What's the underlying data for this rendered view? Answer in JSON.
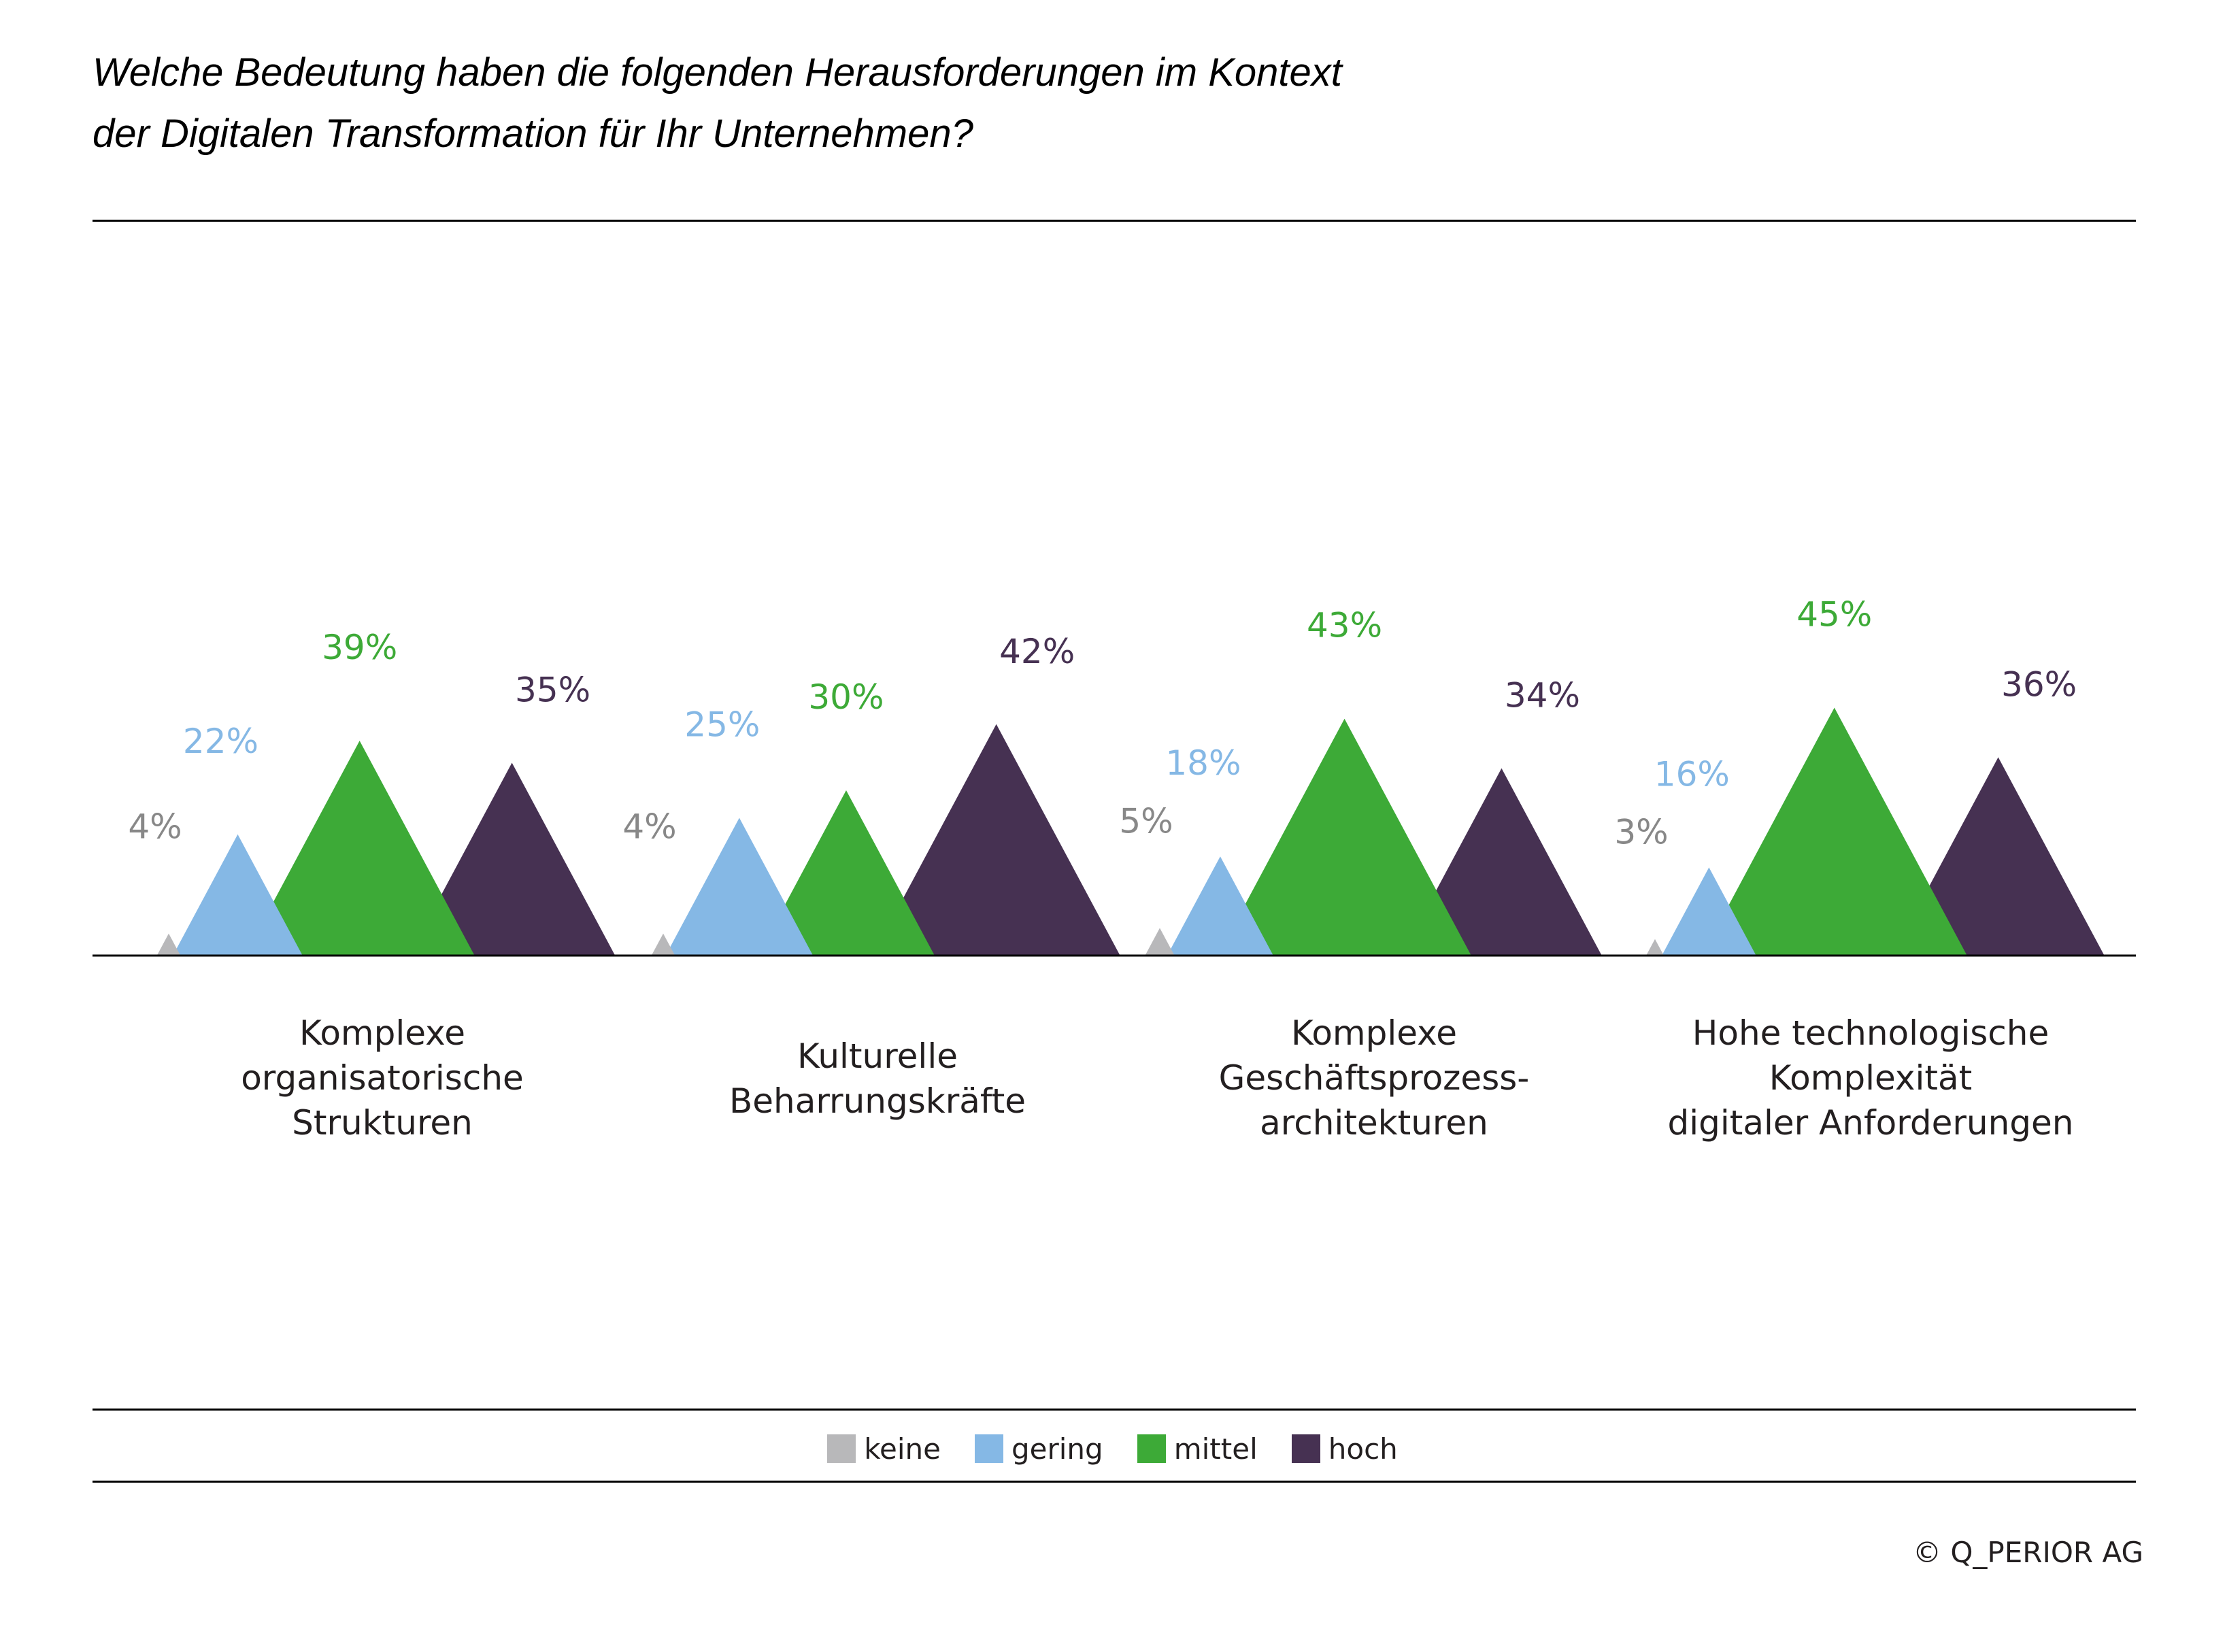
{
  "title_lines": [
    "Welche Bedeutung haben die folgenden Herausforderungen im Kontext",
    "der Digitalen Transformation für Ihr Unternehmen?"
  ],
  "copyright": "©  Q_PERIOR AG",
  "chart_data": {
    "type": "area",
    "style": "overlapping triangles per category",
    "categories": [
      [
        "Komplexe",
        "organisatorische",
        "Strukturen"
      ],
      [
        "Kulturelle",
        "Beharrungskräfte"
      ],
      [
        "Komplexe",
        "Geschäftsprozess-",
        "architekturen"
      ],
      [
        "Hohe technologische",
        "Komplexität",
        "digitaler Anforderungen"
      ]
    ],
    "series": [
      {
        "name": "keine",
        "color": "#b8b8ba",
        "values": [
          4,
          4,
          5,
          3
        ]
      },
      {
        "name": "gering",
        "color": "#85b8e5",
        "values": [
          22,
          25,
          18,
          16
        ]
      },
      {
        "name": "mittel",
        "color": "#3daa37",
        "values": [
          39,
          30,
          43,
          45
        ]
      },
      {
        "name": "hoch",
        "color": "#463152",
        "values": [
          35,
          42,
          34,
          36
        ]
      }
    ],
    "value_suffix": "%",
    "ylim": [
      0,
      50
    ],
    "legend_position": "bottom-center",
    "grid": false
  }
}
